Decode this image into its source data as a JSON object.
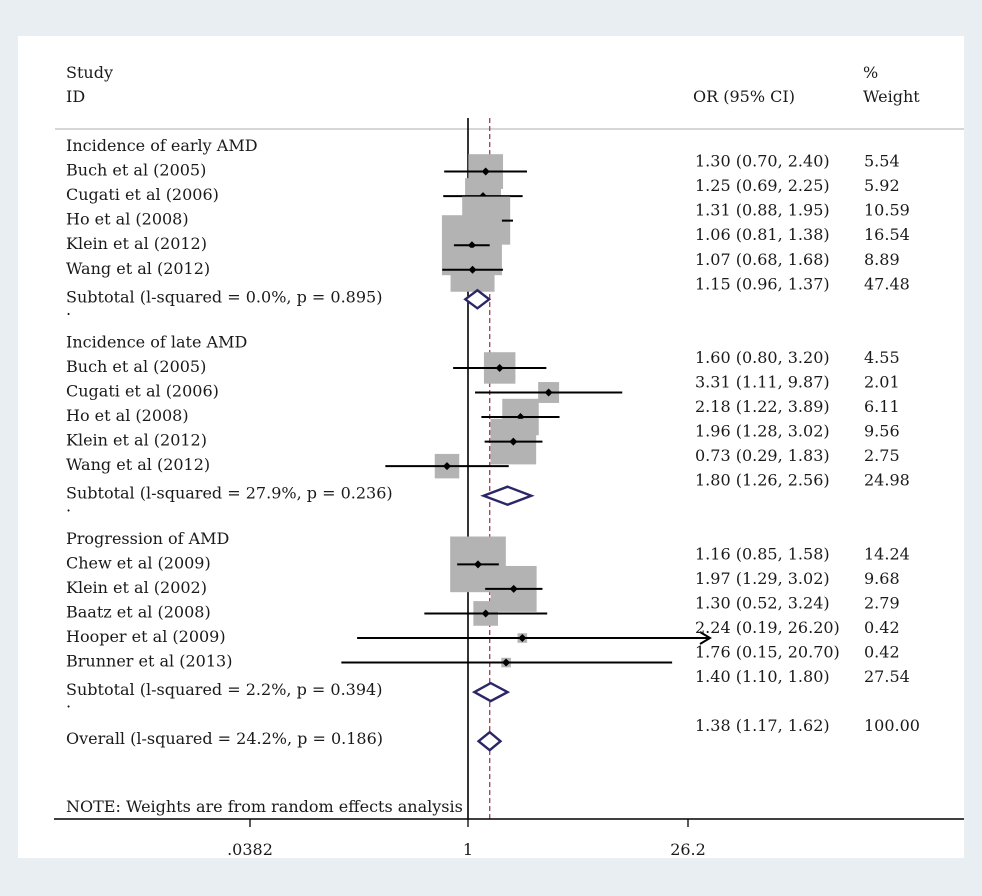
{
  "chart_data": {
    "type": "forest",
    "x_scale": "log",
    "xlim": [
      0.0382,
      26.2
    ],
    "x_ticks": [
      ".0382",
      "1",
      "26.2"
    ],
    "null_line": 1,
    "overall_effect": 1.38,
    "header": {
      "study_label_1": "Study",
      "study_label_2": "ID",
      "effect_label": "OR (95% CI)",
      "weight_label_1": "%",
      "weight_label_2": "Weight"
    },
    "rows": [
      {
        "kind": "group",
        "label": "Incidence of early AMD"
      },
      {
        "kind": "study",
        "label": "Buch et al (2005)",
        "or": 1.3,
        "lo": 0.7,
        "hi": 2.4,
        "weight": 5.54,
        "text": "1.30 (0.70, 2.40)",
        "weight_text": "5.54"
      },
      {
        "kind": "study",
        "label": "Cugati et al (2006)",
        "or": 1.25,
        "lo": 0.69,
        "hi": 2.25,
        "weight": 5.92,
        "text": "1.25 (0.69, 2.25)",
        "weight_text": "5.92"
      },
      {
        "kind": "study",
        "label": "Ho et al (2008)",
        "or": 1.31,
        "lo": 0.88,
        "hi": 1.95,
        "weight": 10.59,
        "text": "1.31 (0.88, 1.95)",
        "weight_text": "10.59"
      },
      {
        "kind": "study",
        "label": "Klein et al (2012)",
        "or": 1.06,
        "lo": 0.81,
        "hi": 1.38,
        "weight": 16.54,
        "text": "1.06 (0.81, 1.38)",
        "weight_text": "16.54"
      },
      {
        "kind": "study",
        "label": "Wang et al (2012)",
        "or": 1.07,
        "lo": 0.68,
        "hi": 1.68,
        "weight": 8.89,
        "text": "1.07 (0.68, 1.68)",
        "weight_text": "8.89"
      },
      {
        "kind": "subtotal",
        "label": "Subtotal (l-squared = 0.0%, p = 0.895)",
        "or": 1.15,
        "lo": 0.96,
        "hi": 1.37,
        "text": "1.15 (0.96, 1.37)",
        "weight_text": "47.48"
      },
      {
        "kind": "dot",
        "label": "."
      },
      {
        "kind": "group",
        "label": "Incidence of late AMD"
      },
      {
        "kind": "study",
        "label": "Buch et al (2005)",
        "or": 1.6,
        "lo": 0.8,
        "hi": 3.2,
        "weight": 4.55,
        "text": "1.60 (0.80, 3.20)",
        "weight_text": "4.55"
      },
      {
        "kind": "study",
        "label": "Cugati et al (2006)",
        "or": 3.31,
        "lo": 1.11,
        "hi": 9.87,
        "weight": 2.01,
        "text": "3.31 (1.11, 9.87)",
        "weight_text": "2.01"
      },
      {
        "kind": "study",
        "label": "Ho et al (2008)",
        "or": 2.18,
        "lo": 1.22,
        "hi": 3.89,
        "weight": 6.11,
        "text": "2.18 (1.22, 3.89)",
        "weight_text": "6.11"
      },
      {
        "kind": "study",
        "label": "Klein et al (2012)",
        "or": 1.96,
        "lo": 1.28,
        "hi": 3.02,
        "weight": 9.56,
        "text": "1.96 (1.28, 3.02)",
        "weight_text": "9.56"
      },
      {
        "kind": "study",
        "label": "Wang et al (2012)",
        "or": 0.73,
        "lo": 0.29,
        "hi": 1.83,
        "weight": 2.75,
        "text": "0.73 (0.29, 1.83)",
        "weight_text": "2.75"
      },
      {
        "kind": "subtotal",
        "label": "Subtotal (l-squared = 27.9%, p = 0.236)",
        "or": 1.8,
        "lo": 1.26,
        "hi": 2.56,
        "text": "1.80 (1.26, 2.56)",
        "weight_text": "24.98"
      },
      {
        "kind": "dot",
        "label": "."
      },
      {
        "kind": "group",
        "label": "Progression of AMD"
      },
      {
        "kind": "study",
        "label": "Chew et al (2009)",
        "or": 1.16,
        "lo": 0.85,
        "hi": 1.58,
        "weight": 14.24,
        "text": "1.16 (0.85, 1.58)",
        "weight_text": "14.24"
      },
      {
        "kind": "study",
        "label": "Klein et al (2002)",
        "or": 1.97,
        "lo": 1.29,
        "hi": 3.02,
        "weight": 9.68,
        "text": "1.97 (1.29, 3.02)",
        "weight_text": "9.68"
      },
      {
        "kind": "study",
        "label": "Baatz et al (2008)",
        "or": 1.3,
        "lo": 0.52,
        "hi": 3.24,
        "weight": 2.79,
        "text": "1.30 (0.52, 3.24)",
        "weight_text": "2.79"
      },
      {
        "kind": "study",
        "label": "Hooper et al (2009)",
        "or": 2.24,
        "lo": 0.19,
        "hi": 26.2,
        "weight": 0.42,
        "text": "2.24 (0.19, 26.20)",
        "weight_text": "0.42",
        "arrow_right": true
      },
      {
        "kind": "study",
        "label": "Brunner et al (2013)",
        "or": 1.76,
        "lo": 0.15,
        "hi": 20.7,
        "weight": 0.42,
        "text": "1.76 (0.15, 20.70)",
        "weight_text": "0.42"
      },
      {
        "kind": "subtotal",
        "label": "Subtotal (l-squared = 2.2%, p = 0.394)",
        "or": 1.4,
        "lo": 1.1,
        "hi": 1.8,
        "text": "1.40 (1.10, 1.80)",
        "weight_text": "27.54"
      },
      {
        "kind": "dot",
        "label": "."
      },
      {
        "kind": "subtotal",
        "label": "Overall (l-squared = 24.2%, p = 0.186)",
        "or": 1.38,
        "lo": 1.17,
        "hi": 1.62,
        "text": "1.38 (1.17, 1.62)",
        "weight_text": "100.00",
        "overall": true
      }
    ],
    "note": "NOTE: Weights are from random effects analysis",
    "colors": {
      "box": "#b3b3b3",
      "line": "#000000",
      "diamond": "#2b2767",
      "reference": "#a83a4c"
    }
  }
}
